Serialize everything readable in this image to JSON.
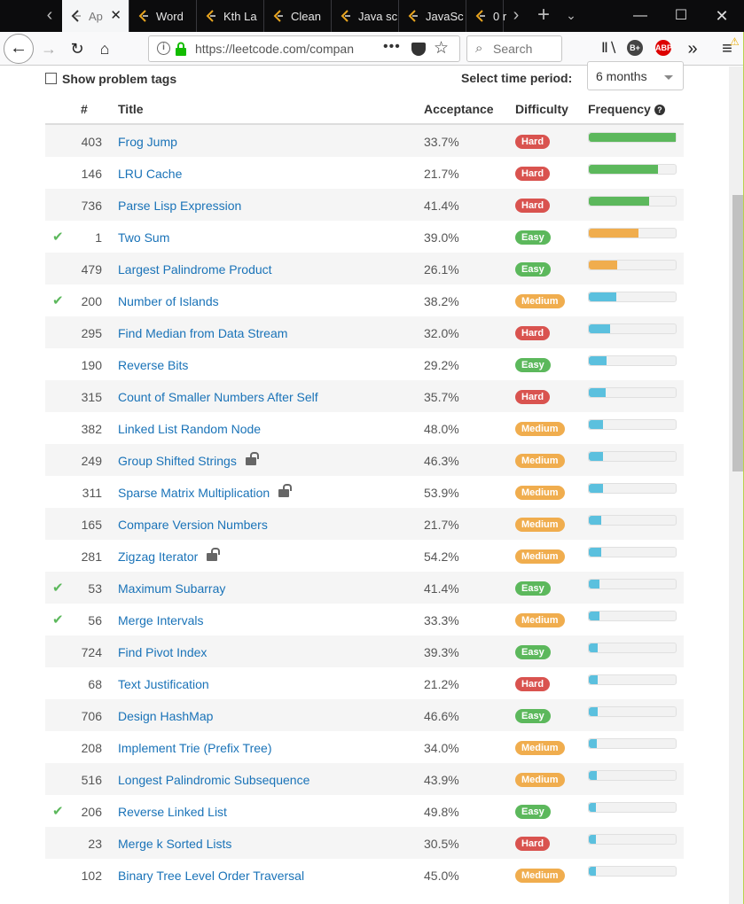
{
  "browser": {
    "tabs": [
      {
        "label": "Ap",
        "active": true
      },
      {
        "label": "Word",
        "active": false
      },
      {
        "label": "Kth La",
        "active": false
      },
      {
        "label": "Clean",
        "active": false
      },
      {
        "label": "Java sc",
        "active": false
      },
      {
        "label": "JavaSc",
        "active": false
      },
      {
        "label": "0 r",
        "active": false
      }
    ],
    "url": "https://leetcode.com/compan",
    "search_placeholder": "Search",
    "extensions": [
      "B+",
      "ABP"
    ]
  },
  "filters": {
    "show_tags_label": "Show problem tags",
    "period_label": "Select time period:",
    "period_value": "6 months"
  },
  "table": {
    "headers": {
      "num": "#",
      "title": "Title",
      "acceptance": "Acceptance",
      "difficulty": "Difficulty",
      "frequency": "Frequency"
    },
    "rows": [
      {
        "solved": false,
        "num": "403",
        "title": "Frog Jump",
        "locked": false,
        "acceptance": "33.7%",
        "difficulty": "Hard",
        "freq": 1.0,
        "freq_color": "#5cb85c"
      },
      {
        "solved": false,
        "num": "146",
        "title": "LRU Cache",
        "locked": false,
        "acceptance": "21.7%",
        "difficulty": "Hard",
        "freq": 0.8,
        "freq_color": "#5cb85c"
      },
      {
        "solved": false,
        "num": "736",
        "title": "Parse Lisp Expression",
        "locked": false,
        "acceptance": "41.4%",
        "difficulty": "Hard",
        "freq": 0.69,
        "freq_color": "#5cb85c"
      },
      {
        "solved": true,
        "num": "1",
        "title": "Two Sum",
        "locked": false,
        "acceptance": "39.0%",
        "difficulty": "Easy",
        "freq": 0.57,
        "freq_color": "#f0ad4e"
      },
      {
        "solved": false,
        "num": "479",
        "title": "Largest Palindrome Product",
        "locked": false,
        "acceptance": "26.1%",
        "difficulty": "Easy",
        "freq": 0.33,
        "freq_color": "#f0ad4e"
      },
      {
        "solved": true,
        "num": "200",
        "title": "Number of Islands",
        "locked": false,
        "acceptance": "38.2%",
        "difficulty": "Medium",
        "freq": 0.32,
        "freq_color": "#5bc0de"
      },
      {
        "solved": false,
        "num": "295",
        "title": "Find Median from Data Stream",
        "locked": false,
        "acceptance": "32.0%",
        "difficulty": "Hard",
        "freq": 0.24,
        "freq_color": "#5bc0de"
      },
      {
        "solved": false,
        "num": "190",
        "title": "Reverse Bits",
        "locked": false,
        "acceptance": "29.2%",
        "difficulty": "Easy",
        "freq": 0.2,
        "freq_color": "#5bc0de"
      },
      {
        "solved": false,
        "num": "315",
        "title": "Count of Smaller Numbers After Self",
        "locked": false,
        "acceptance": "35.7%",
        "difficulty": "Hard",
        "freq": 0.19,
        "freq_color": "#5bc0de"
      },
      {
        "solved": false,
        "num": "382",
        "title": "Linked List Random Node",
        "locked": false,
        "acceptance": "48.0%",
        "difficulty": "Medium",
        "freq": 0.16,
        "freq_color": "#5bc0de"
      },
      {
        "solved": false,
        "num": "249",
        "title": "Group Shifted Strings",
        "locked": true,
        "acceptance": "46.3%",
        "difficulty": "Medium",
        "freq": 0.16,
        "freq_color": "#5bc0de"
      },
      {
        "solved": false,
        "num": "311",
        "title": "Sparse Matrix Multiplication",
        "locked": true,
        "acceptance": "53.9%",
        "difficulty": "Medium",
        "freq": 0.16,
        "freq_color": "#5bc0de"
      },
      {
        "solved": false,
        "num": "165",
        "title": "Compare Version Numbers",
        "locked": false,
        "acceptance": "21.7%",
        "difficulty": "Medium",
        "freq": 0.14,
        "freq_color": "#5bc0de"
      },
      {
        "solved": false,
        "num": "281",
        "title": "Zigzag Iterator",
        "locked": true,
        "acceptance": "54.2%",
        "difficulty": "Medium",
        "freq": 0.14,
        "freq_color": "#5bc0de"
      },
      {
        "solved": true,
        "num": "53",
        "title": "Maximum Subarray",
        "locked": false,
        "acceptance": "41.4%",
        "difficulty": "Easy",
        "freq": 0.12,
        "freq_color": "#5bc0de"
      },
      {
        "solved": true,
        "num": "56",
        "title": "Merge Intervals",
        "locked": false,
        "acceptance": "33.3%",
        "difficulty": "Medium",
        "freq": 0.12,
        "freq_color": "#5bc0de"
      },
      {
        "solved": false,
        "num": "724",
        "title": "Find Pivot Index",
        "locked": false,
        "acceptance": "39.3%",
        "difficulty": "Easy",
        "freq": 0.1,
        "freq_color": "#5bc0de"
      },
      {
        "solved": false,
        "num": "68",
        "title": "Text Justification",
        "locked": false,
        "acceptance": "21.2%",
        "difficulty": "Hard",
        "freq": 0.1,
        "freq_color": "#5bc0de"
      },
      {
        "solved": false,
        "num": "706",
        "title": "Design HashMap",
        "locked": false,
        "acceptance": "46.6%",
        "difficulty": "Easy",
        "freq": 0.1,
        "freq_color": "#5bc0de"
      },
      {
        "solved": false,
        "num": "208",
        "title": "Implement Trie (Prefix Tree)",
        "locked": false,
        "acceptance": "34.0%",
        "difficulty": "Medium",
        "freq": 0.09,
        "freq_color": "#5bc0de"
      },
      {
        "solved": false,
        "num": "516",
        "title": "Longest Palindromic Subsequence",
        "locked": false,
        "acceptance": "43.9%",
        "difficulty": "Medium",
        "freq": 0.09,
        "freq_color": "#5bc0de"
      },
      {
        "solved": true,
        "num": "206",
        "title": "Reverse Linked List",
        "locked": false,
        "acceptance": "49.8%",
        "difficulty": "Easy",
        "freq": 0.08,
        "freq_color": "#5bc0de"
      },
      {
        "solved": false,
        "num": "23",
        "title": "Merge k Sorted Lists",
        "locked": false,
        "acceptance": "30.5%",
        "difficulty": "Hard",
        "freq": 0.08,
        "freq_color": "#5bc0de"
      },
      {
        "solved": false,
        "num": "102",
        "title": "Binary Tree Level Order Traversal",
        "locked": false,
        "acceptance": "45.0%",
        "difficulty": "Medium",
        "freq": 0.08,
        "freq_color": "#5bc0de"
      }
    ]
  }
}
